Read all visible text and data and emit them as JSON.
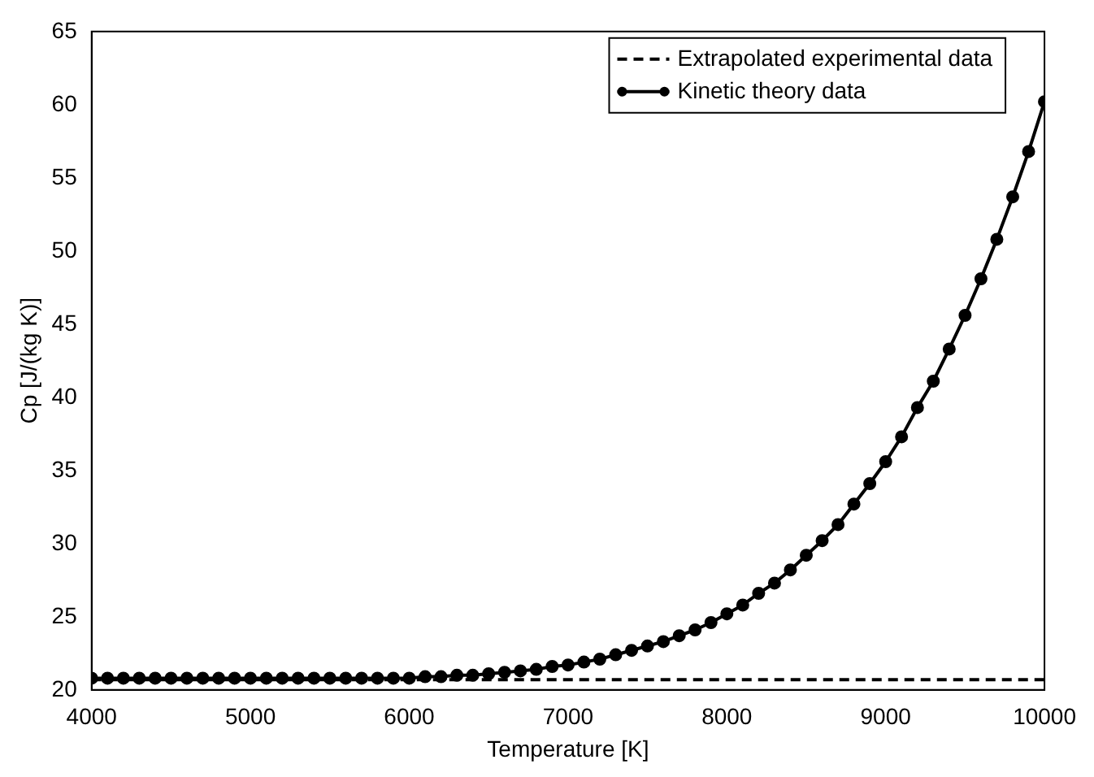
{
  "chart_data": {
    "type": "line",
    "xlabel": "Temperature [K]",
    "ylabel": "Cp [J/(kg K)]",
    "xlim": [
      4000,
      10000
    ],
    "ylim": [
      20,
      65
    ],
    "xticks": [
      4000,
      5000,
      6000,
      7000,
      8000,
      9000,
      10000
    ],
    "yticks": [
      20,
      25,
      30,
      35,
      40,
      45,
      50,
      55,
      60,
      65
    ],
    "grid": false,
    "legend": "top right",
    "series": [
      {
        "name": "Extrapolated experimental data",
        "color": "#000000",
        "line_style": "dashed",
        "marker": "none",
        "x": [
          4000,
          10000
        ],
        "values": [
          20.7,
          20.7
        ]
      },
      {
        "name": "Kinetic theory data",
        "color": "#000000",
        "line_style": "solid",
        "marker": "circle",
        "x": [
          4000,
          4100,
          4200,
          4300,
          4400,
          4500,
          4600,
          4700,
          4800,
          4900,
          5000,
          5100,
          5200,
          5300,
          5400,
          5500,
          5600,
          5700,
          5800,
          5900,
          6000,
          6100,
          6200,
          6300,
          6400,
          6500,
          6600,
          6700,
          6800,
          6900,
          7000,
          7100,
          7200,
          7300,
          7400,
          7500,
          7600,
          7700,
          7800,
          7900,
          8000,
          8100,
          8200,
          8300,
          8400,
          8500,
          8600,
          8700,
          8800,
          8900,
          9000,
          9100,
          9200,
          9300,
          9400,
          9500,
          9600,
          9700,
          9800,
          9900,
          10000
        ],
        "values": [
          20.8,
          20.8,
          20.8,
          20.8,
          20.8,
          20.8,
          20.8,
          20.8,
          20.8,
          20.8,
          20.8,
          20.8,
          20.8,
          20.8,
          20.8,
          20.8,
          20.8,
          20.8,
          20.8,
          20.8,
          20.8,
          20.9,
          20.9,
          21.0,
          21.0,
          21.1,
          21.2,
          21.3,
          21.4,
          21.6,
          21.7,
          21.9,
          22.1,
          22.4,
          22.7,
          23.0,
          23.3,
          23.7,
          24.1,
          24.6,
          25.2,
          25.8,
          26.6,
          27.3,
          28.2,
          29.2,
          30.2,
          31.3,
          32.7,
          34.1,
          35.6,
          37.3,
          39.3,
          41.1,
          43.3,
          45.6,
          48.1,
          50.8,
          53.7,
          56.8,
          60.2
        ]
      }
    ]
  }
}
